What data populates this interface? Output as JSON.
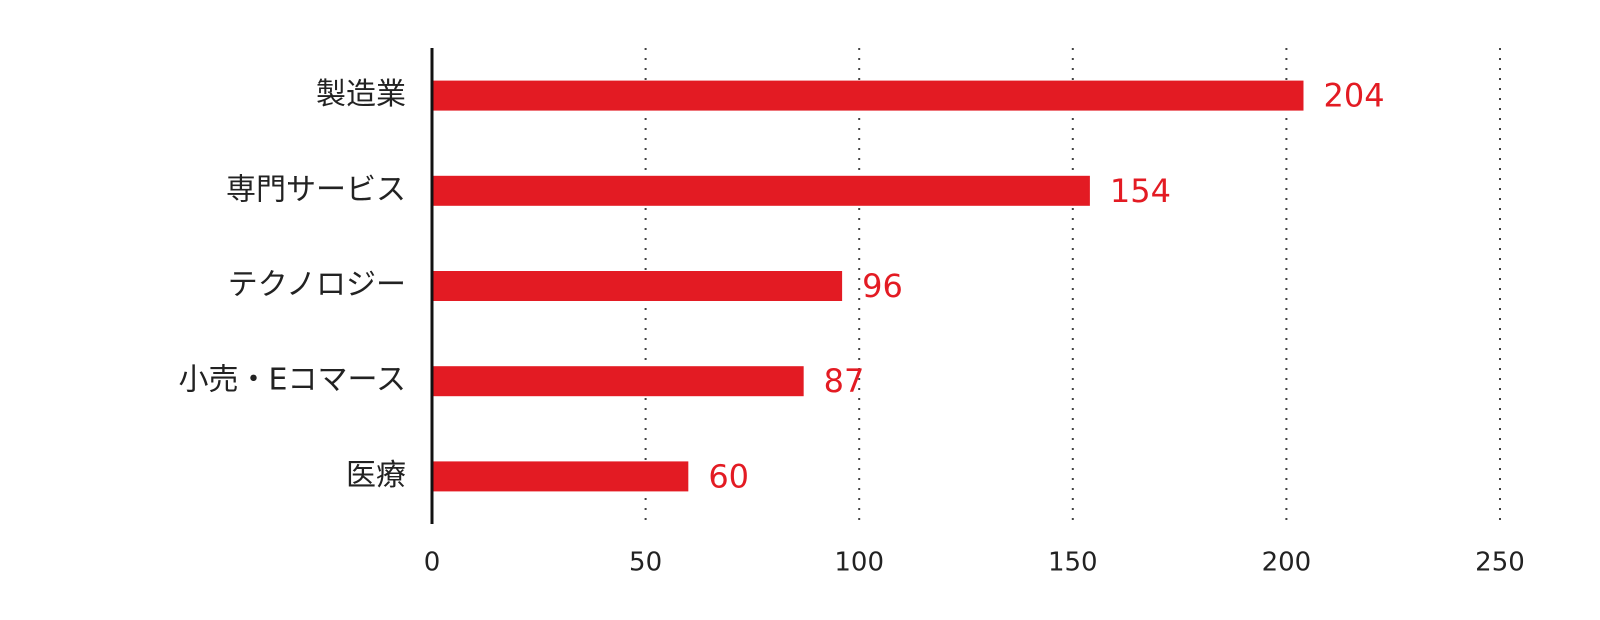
{
  "chart_data": {
    "type": "hbar",
    "categories": [
      "製造業",
      "専門サービス",
      "テクノロジー",
      "小売・Eコマース",
      "医療"
    ],
    "values": [
      204,
      154,
      96,
      87,
      60
    ],
    "color": "#e31b23",
    "xlim": [
      0,
      250
    ],
    "xticks": [
      0,
      50,
      100,
      150,
      200,
      250
    ],
    "grid": true
  }
}
